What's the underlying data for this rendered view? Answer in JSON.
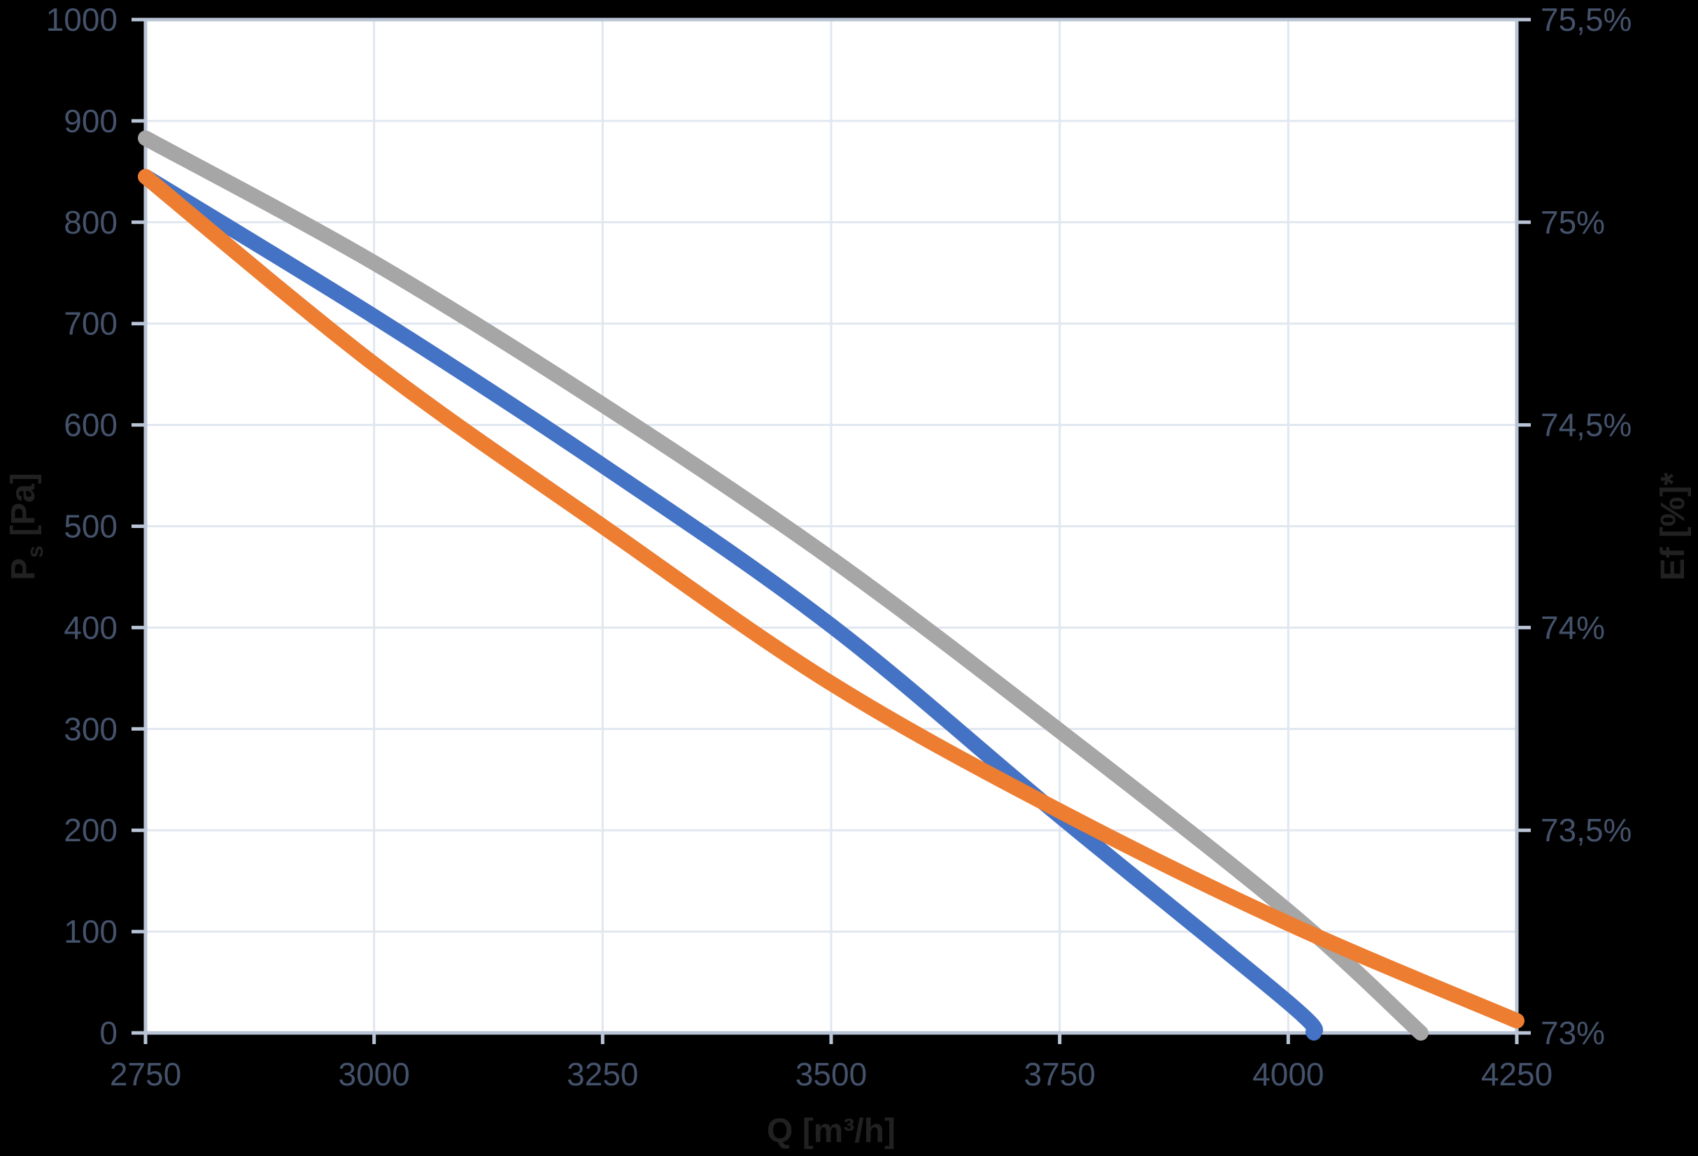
{
  "colors": {
    "background": "#000000",
    "plot_background": "#ffffff",
    "gridline": "#e1e7f0",
    "axis_line": "#b9c4d6",
    "tick_label": "#44526b",
    "axis_title": "#212121",
    "series_blue": "#4472C4",
    "series_orange": "#ED7D31",
    "series_gray": "#A6A6A6"
  },
  "axes": {
    "left": {
      "title_main": "P",
      "title_sub": "s",
      "title_rest": " [Pa]"
    },
    "right": {
      "title": "Ef [%]*"
    },
    "bottom": {
      "title": "Q [m³/h]"
    }
  },
  "chart_data": {
    "type": "line",
    "title": "",
    "legend": "none",
    "grid": true,
    "x_axis": {
      "label": "Q [m³/h]",
      "min": 2750,
      "max": 4250,
      "tick_step": 250,
      "ticks": [
        {
          "v": 2750,
          "label": "2750"
        },
        {
          "v": 3000,
          "label": "3000"
        },
        {
          "v": 3250,
          "label": "3250"
        },
        {
          "v": 3500,
          "label": "3500"
        },
        {
          "v": 3750,
          "label": "3750"
        },
        {
          "v": 4000,
          "label": "4000"
        },
        {
          "v": 4250,
          "label": "4250"
        }
      ]
    },
    "y_left": {
      "label": "Ps [Pa]",
      "min": 0,
      "max": 1000,
      "tick_step": 100,
      "ticks": [
        {
          "v": 1000,
          "label": "1000"
        },
        {
          "v": 900,
          "label": "900"
        },
        {
          "v": 800,
          "label": "800"
        },
        {
          "v": 700,
          "label": "700"
        },
        {
          "v": 600,
          "label": "600"
        },
        {
          "v": 500,
          "label": "500"
        },
        {
          "v": 400,
          "label": "400"
        },
        {
          "v": 300,
          "label": "300"
        },
        {
          "v": 200,
          "label": "200"
        },
        {
          "v": 100,
          "label": "100"
        },
        {
          "v": 0,
          "label": "0"
        }
      ]
    },
    "y_right": {
      "label": "Ef [%]*",
      "min_pct": 73,
      "max_pct": 75.5,
      "note_mapping": "73%=0 Pa, 75,5%=1000 Pa (0,25% per 100 Pa)",
      "ticks": [
        {
          "v": 1000,
          "label": "75,5%"
        },
        {
          "v": 800,
          "label": "75%"
        },
        {
          "v": 600,
          "label": "74,5%"
        },
        {
          "v": 400,
          "label": "74%"
        },
        {
          "v": 200,
          "label": "73,5%"
        },
        {
          "v": 0,
          "label": "73%"
        }
      ]
    },
    "series": [
      {
        "name": "gray-curve",
        "color": "#A6A6A6",
        "points": [
          [
            2750,
            883
          ],
          [
            3000,
            760
          ],
          [
            3250,
            620
          ],
          [
            3500,
            468
          ],
          [
            3750,
            298
          ],
          [
            4000,
            120
          ],
          [
            4145,
            0
          ]
        ]
      },
      {
        "name": "blue-curve",
        "color": "#4472C4",
        "points": [
          [
            2750,
            845
          ],
          [
            3000,
            707
          ],
          [
            3250,
            560
          ],
          [
            3500,
            402
          ],
          [
            3750,
            214
          ],
          [
            4000,
            30
          ],
          [
            4028,
            0
          ]
        ]
      },
      {
        "name": "orange-curve",
        "color": "#ED7D31",
        "points": [
          [
            2750,
            845
          ],
          [
            3000,
            660
          ],
          [
            3250,
            500
          ],
          [
            3500,
            345
          ],
          [
            3750,
            219
          ],
          [
            4000,
            108
          ],
          [
            4250,
            12
          ]
        ]
      }
    ]
  }
}
